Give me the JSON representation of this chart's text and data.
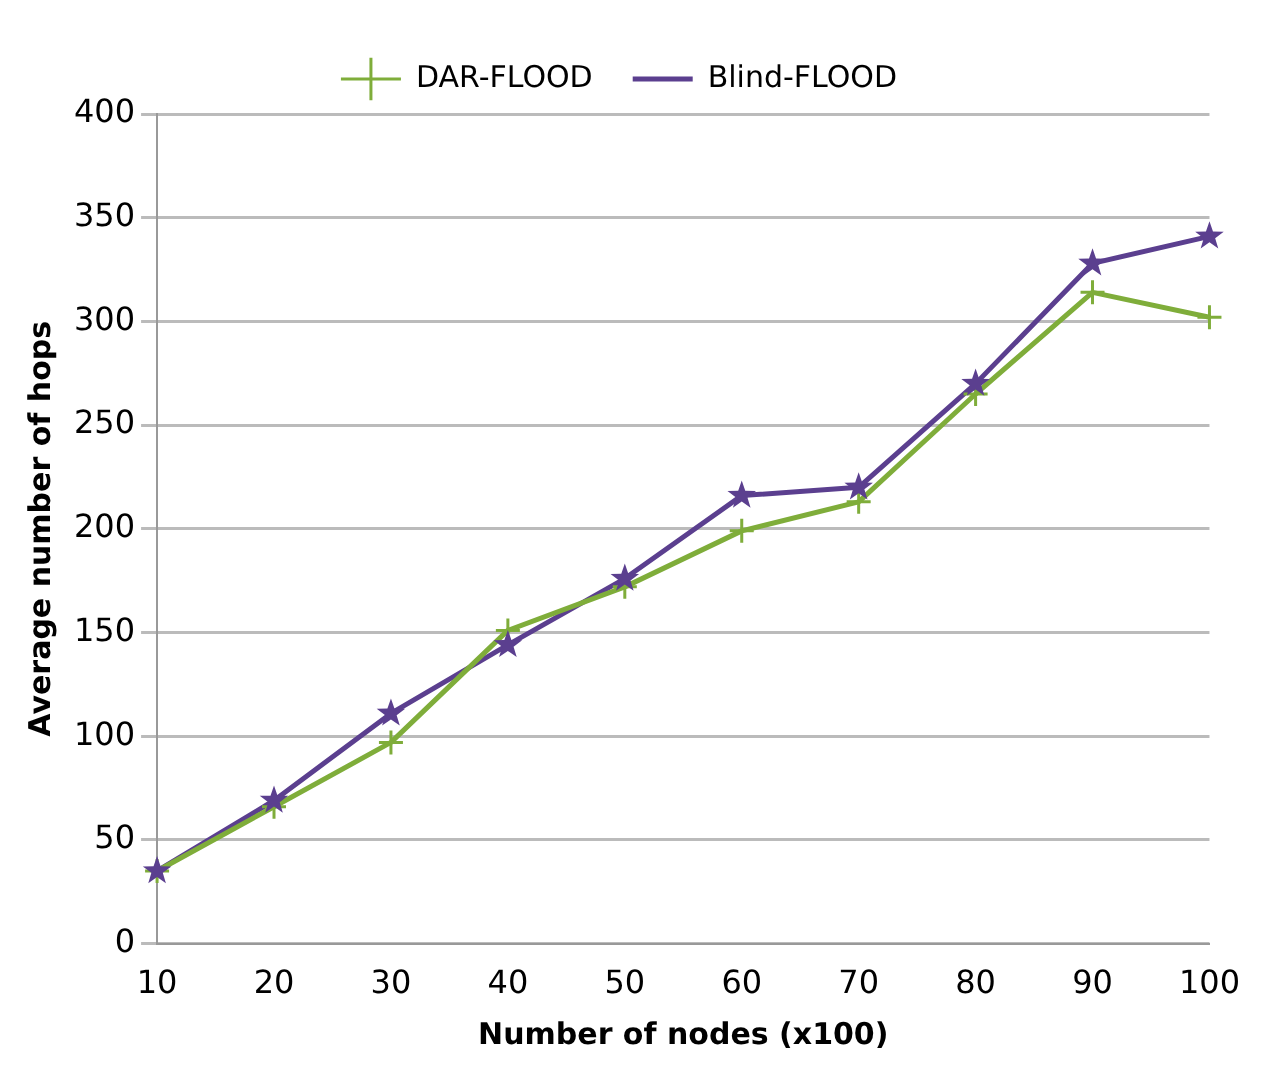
{
  "chart_data": {
    "type": "line",
    "xlabel": "Number of nodes (x100)",
    "ylabel": "Average number of hops",
    "categories": [
      "10",
      "20",
      "30",
      "40",
      "50",
      "60",
      "70",
      "80",
      "90",
      "100"
    ],
    "series": [
      {
        "name": "DAR-FLOOD",
        "color": "#7fad3a",
        "marker": "cross",
        "values": [
          35,
          66,
          97,
          151,
          172,
          199,
          213,
          265,
          314,
          302
        ]
      },
      {
        "name": "Blind-FLOOD",
        "color": "#5b3f8f",
        "marker": "star",
        "values": [
          35,
          69,
          111,
          144,
          176,
          216,
          220,
          270,
          328,
          341
        ]
      }
    ],
    "ylim": [
      0,
      400
    ],
    "yticks": [
      0,
      50,
      100,
      150,
      200,
      250,
      300,
      350,
      400
    ],
    "grid": "y",
    "legend": "top"
  }
}
